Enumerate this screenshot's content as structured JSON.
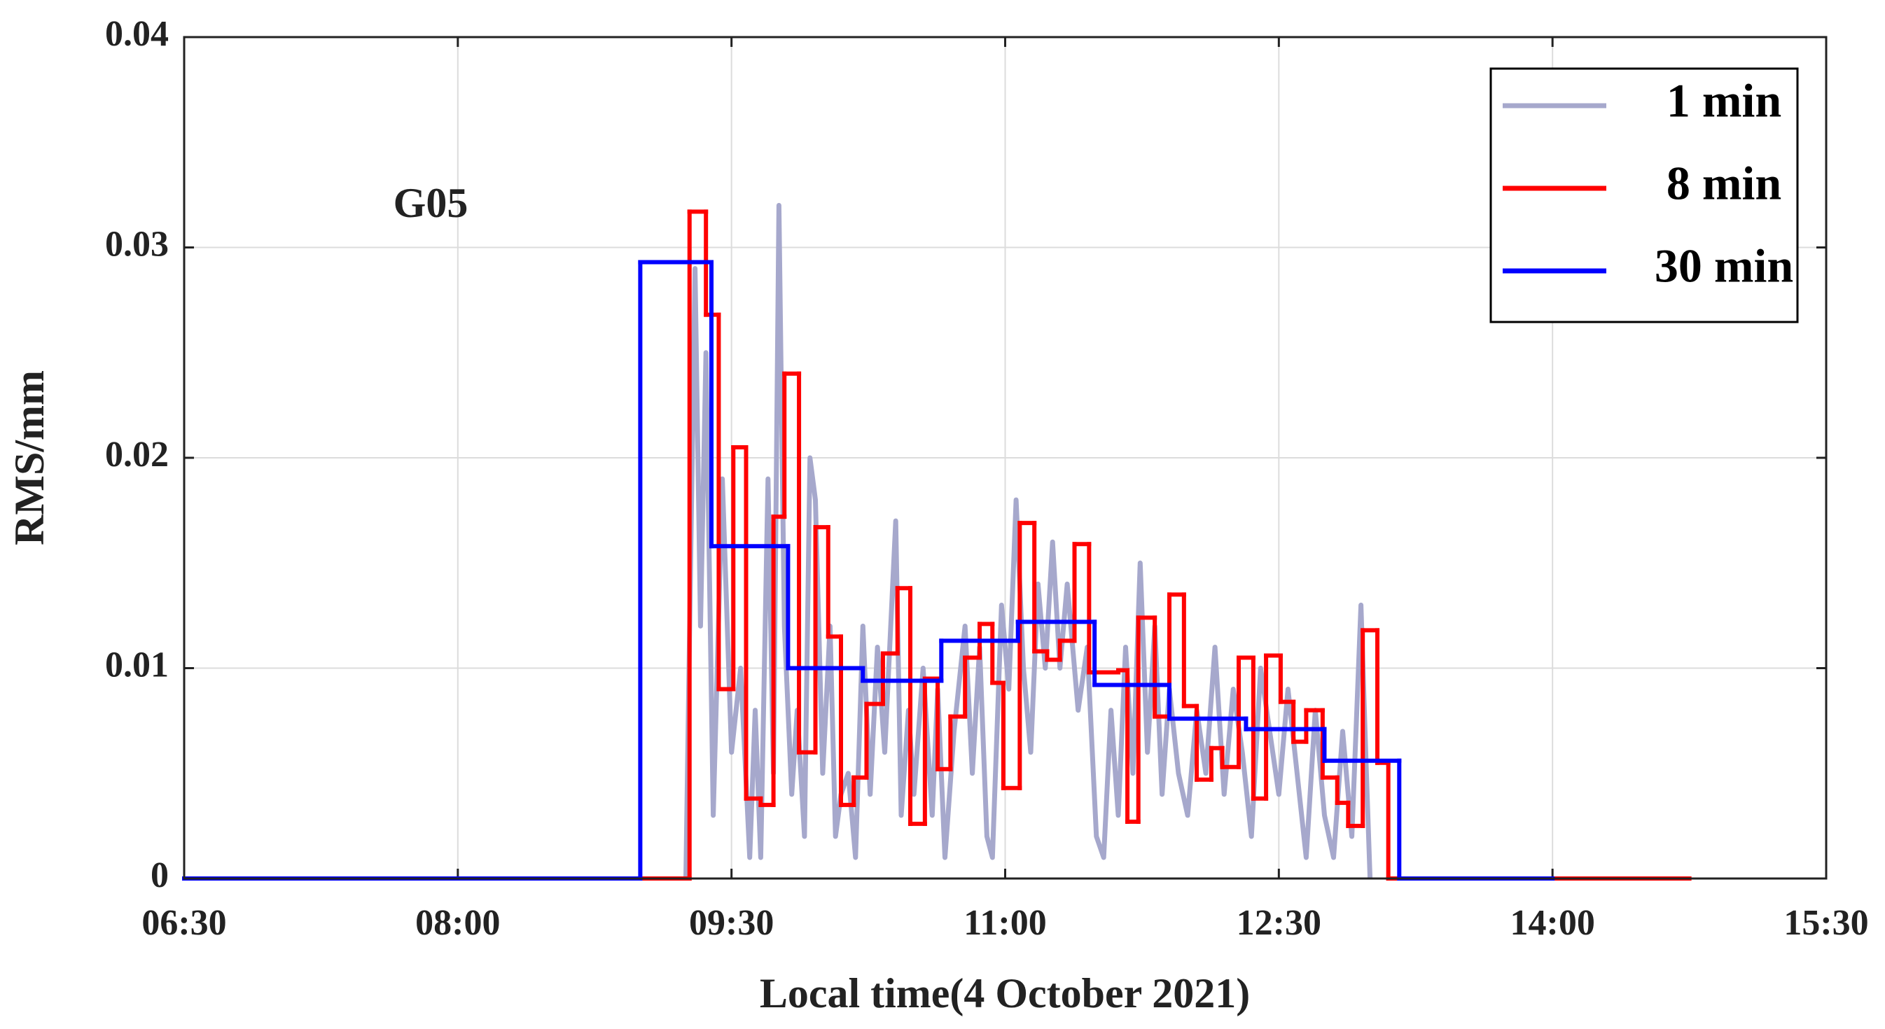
{
  "chart_data": {
    "type": "line",
    "xlabel": "Local time(4 October 2021)",
    "ylabel": "RMS/mm",
    "annotation": "G05",
    "xlim": [
      6.5,
      15.5
    ],
    "xticks": [
      {
        "value": 6.5,
        "label": "06:30"
      },
      {
        "value": 8,
        "label": "08:00"
      },
      {
        "value": 9.5,
        "label": "09:30"
      },
      {
        "value": 11,
        "label": "11:00"
      },
      {
        "value": 12.5,
        "label": "12:30"
      },
      {
        "value": 14,
        "label": "14:00"
      },
      {
        "value": 15.5,
        "label": "15:30"
      }
    ],
    "ylim": [
      0,
      0.04
    ],
    "yticks": [
      0,
      0.01,
      0.02,
      0.03,
      0.04
    ],
    "grid": true,
    "legend": "upper right",
    "series": [
      {
        "name": "1 min",
        "color": "#a6a8cc",
        "drawstyle": "default",
        "x": [
          9.25,
          9.3,
          9.33,
          9.36,
          9.4,
          9.45,
          9.5,
          9.55,
          9.6,
          9.63,
          9.66,
          9.7,
          9.73,
          9.76,
          9.79,
          9.83,
          9.86,
          9.9,
          9.93,
          9.96,
          10.0,
          10.04,
          10.07,
          10.1,
          10.14,
          10.18,
          10.22,
          10.26,
          10.3,
          10.34,
          10.4,
          10.43,
          10.47,
          10.5,
          10.55,
          10.6,
          10.63,
          10.67,
          10.72,
          10.78,
          10.82,
          10.86,
          10.9,
          10.93,
          10.98,
          11.02,
          11.06,
          11.1,
          11.14,
          11.18,
          11.22,
          11.26,
          11.3,
          11.34,
          11.4,
          11.45,
          11.5,
          11.54,
          11.58,
          11.62,
          11.66,
          11.7,
          11.74,
          11.78,
          11.82,
          11.86,
          11.9,
          11.95,
          12.0,
          12.05,
          12.1,
          12.15,
          12.2,
          12.25,
          12.3,
          12.35,
          12.4,
          12.45,
          12.5,
          12.55,
          12.6,
          12.65,
          12.7,
          12.75,
          12.8,
          12.85,
          12.9,
          12.95,
          12.98,
          13.0
        ],
        "values": [
          0,
          0.029,
          0.012,
          0.025,
          0.003,
          0.019,
          0.006,
          0.01,
          0.001,
          0.008,
          0.001,
          0.019,
          0.005,
          0.032,
          0.012,
          0.004,
          0.008,
          0.002,
          0.02,
          0.018,
          0.005,
          0.012,
          0.002,
          0.004,
          0.005,
          0.001,
          0.012,
          0.004,
          0.011,
          0.006,
          0.017,
          0.003,
          0.008,
          0.004,
          0.01,
          0.003,
          0.009,
          0.001,
          0.007,
          0.012,
          0.005,
          0.011,
          0.002,
          0.001,
          0.013,
          0.009,
          0.018,
          0.01,
          0.006,
          0.014,
          0.01,
          0.016,
          0.01,
          0.014,
          0.008,
          0.011,
          0.002,
          0.001,
          0.008,
          0.003,
          0.011,
          0.005,
          0.015,
          0.006,
          0.012,
          0.004,
          0.009,
          0.005,
          0.003,
          0.008,
          0.005,
          0.011,
          0.004,
          0.009,
          0.006,
          0.002,
          0.01,
          0.007,
          0.004,
          0.009,
          0.005,
          0.001,
          0.008,
          0.003,
          0.001,
          0.007,
          0.002,
          0.013,
          0.005,
          0
        ]
      },
      {
        "name": "8 min",
        "color": "#ff0000",
        "drawstyle": "steps-post",
        "x": [
          6.5,
          9.27,
          9.36,
          9.43,
          9.51,
          9.58,
          9.66,
          9.73,
          9.79,
          9.87,
          9.96,
          10.03,
          10.1,
          10.17,
          10.24,
          10.33,
          10.41,
          10.48,
          10.56,
          10.63,
          10.7,
          10.78,
          10.86,
          10.93,
          10.99,
          11.08,
          11.16,
          11.23,
          11.3,
          11.38,
          11.46,
          11.62,
          11.67,
          11.73,
          11.82,
          11.9,
          11.98,
          12.05,
          12.13,
          12.19,
          12.28,
          12.36,
          12.43,
          12.51,
          12.58,
          12.65,
          12.74,
          12.82,
          12.88,
          12.96,
          13.04,
          13.1,
          14.75
        ],
        "values": [
          0,
          0.0317,
          0.0268,
          0.009,
          0.0205,
          0.0038,
          0.0035,
          0.0172,
          0.024,
          0.006,
          0.0167,
          0.0115,
          0.0035,
          0.0048,
          0.0083,
          0.0107,
          0.0138,
          0.0026,
          0.0095,
          0.0052,
          0.0077,
          0.0105,
          0.0121,
          0.0093,
          0.0043,
          0.0169,
          0.0108,
          0.0104,
          0.0113,
          0.0159,
          0.0098,
          0.0099,
          0.0027,
          0.0124,
          0.0077,
          0.0135,
          0.0082,
          0.0047,
          0.0062,
          0.0053,
          0.0105,
          0.0038,
          0.0106,
          0.0084,
          0.0065,
          0.008,
          0.0048,
          0.0036,
          0.0025,
          0.0118,
          0.0055,
          0,
          0
        ]
      },
      {
        "name": "30 min",
        "color": "#0000ff",
        "drawstyle": "steps-post",
        "x": [
          6.5,
          9.0,
          9.39,
          9.81,
          10.22,
          10.65,
          11.07,
          11.49,
          11.9,
          12.32,
          12.75,
          13.16,
          14.0
        ],
        "values": [
          0,
          0.0293,
          0.0158,
          0.01,
          0.0094,
          0.0113,
          0.0122,
          0.0092,
          0.0076,
          0.0071,
          0.0056,
          0,
          0
        ]
      }
    ]
  }
}
